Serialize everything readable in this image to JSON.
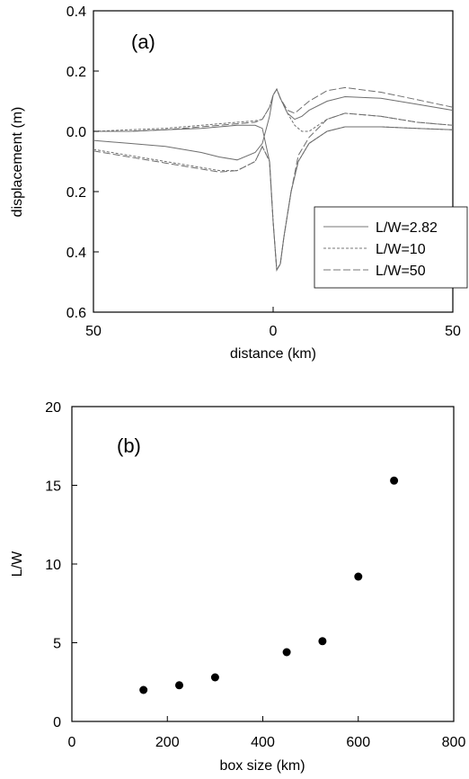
{
  "chart_data": [
    {
      "type": "line",
      "panel_label": "(a)",
      "xlabel": "distance (km)",
      "ylabel": "displacement (m)",
      "xlim": [
        -50,
        50
      ],
      "ylim": [
        -0.6,
        0.4
      ],
      "x_ticks": [
        -50,
        0,
        50
      ],
      "x_tick_labels": [
        "50",
        "0",
        "50"
      ],
      "y_ticks": [
        0.4,
        0.2,
        0.0,
        -0.2,
        -0.4,
        -0.6
      ],
      "y_tick_labels": [
        "0.4",
        "0.2",
        "0.0",
        "0.2",
        "0.4",
        "0.6"
      ],
      "legend_position": "bottom-right",
      "series": [
        {
          "name": "L/W=2.82",
          "style": "solid",
          "curves": [
            {
              "x": [
                -50,
                -40,
                -30,
                -20,
                -15,
                -10,
                -5,
                -3,
                -1,
                0,
                1,
                2,
                4,
                6,
                8,
                10,
                15,
                20,
                30,
                40,
                50
              ],
              "y": [
                -0.03,
                -0.04,
                -0.05,
                -0.07,
                -0.085,
                -0.095,
                -0.07,
                -0.04,
                0.05,
                0.12,
                0.14,
                0.11,
                0.06,
                0.04,
                0.05,
                0.07,
                0.1,
                0.115,
                0.11,
                0.09,
                0.07
              ]
            },
            {
              "x": [
                -50,
                -40,
                -30,
                -20,
                -15,
                -10,
                -5,
                -3,
                -1,
                0,
                1,
                2,
                3,
                5,
                7,
                10,
                15,
                20,
                30,
                40,
                50
              ],
              "y": [
                0.0,
                0.0,
                0.005,
                0.01,
                0.015,
                0.02,
                0.02,
                0.01,
                -0.1,
                -0.3,
                -0.46,
                -0.44,
                -0.35,
                -0.2,
                -0.1,
                -0.04,
                0.0,
                0.015,
                0.015,
                0.01,
                0.005
              ]
            }
          ]
        },
        {
          "name": "L/W=10",
          "style": "short-dash",
          "curves": [
            {
              "x": [
                -50,
                -40,
                -30,
                -20,
                -15,
                -10,
                -5,
                -3,
                -1,
                0,
                1,
                2,
                4,
                6,
                8,
                10,
                15,
                20,
                30,
                40,
                50
              ],
              "y": [
                0.0,
                0.005,
                0.01,
                0.02,
                0.025,
                0.03,
                0.035,
                0.04,
                0.08,
                0.12,
                0.14,
                0.11,
                0.06,
                0.02,
                0.0,
                0.0,
                0.04,
                0.06,
                0.05,
                0.03,
                0.02
              ]
            },
            {
              "x": [
                -50,
                -40,
                -30,
                -20,
                -15,
                -10,
                -5,
                -3,
                -1,
                0,
                1,
                2,
                3,
                5,
                7,
                10,
                15,
                20,
                30,
                40,
                50
              ],
              "y": [
                -0.06,
                -0.08,
                -0.1,
                -0.12,
                -0.13,
                -0.13,
                -0.1,
                -0.05,
                -0.1,
                -0.3,
                -0.46,
                -0.44,
                -0.35,
                -0.2,
                -0.1,
                -0.04,
                0.0,
                0.015,
                0.015,
                0.01,
                0.005
              ]
            }
          ]
        },
        {
          "name": "L/W=50",
          "style": "long-dash",
          "curves": [
            {
              "x": [
                -50,
                -40,
                -30,
                -20,
                -15,
                -10,
                -5,
                -3,
                -1,
                0,
                1,
                2,
                4,
                6,
                8,
                10,
                15,
                20,
                30,
                40,
                50
              ],
              "y": [
                0.0,
                0.0,
                0.005,
                0.015,
                0.02,
                0.025,
                0.03,
                0.04,
                0.08,
                0.12,
                0.14,
                0.11,
                0.07,
                0.06,
                0.08,
                0.1,
                0.135,
                0.145,
                0.13,
                0.105,
                0.08
              ]
            },
            {
              "x": [
                -50,
                -40,
                -30,
                -20,
                -15,
                -10,
                -5,
                -3,
                -1,
                0,
                1,
                2,
                3,
                5,
                7,
                10,
                15,
                20,
                30,
                40,
                50
              ],
              "y": [
                -0.065,
                -0.085,
                -0.105,
                -0.125,
                -0.135,
                -0.13,
                -0.1,
                -0.05,
                -0.1,
                -0.3,
                -0.46,
                -0.44,
                -0.35,
                -0.2,
                -0.08,
                -0.02,
                0.04,
                0.06,
                0.05,
                0.03,
                0.02
              ]
            }
          ]
        }
      ]
    },
    {
      "type": "scatter",
      "panel_label": "(b)",
      "xlabel": "box size (km)",
      "ylabel": "L/W",
      "xlim": [
        0,
        800
      ],
      "ylim": [
        0,
        20
      ],
      "x_ticks": [
        0,
        200,
        400,
        600,
        800
      ],
      "x_tick_labels": [
        "0",
        "200",
        "400",
        "600",
        "800"
      ],
      "y_ticks": [
        0,
        5,
        10,
        15,
        20
      ],
      "y_tick_labels": [
        "0",
        "5",
        "10",
        "15",
        "20"
      ],
      "series": [
        {
          "x": [
            150,
            225,
            300,
            450,
            525,
            600,
            675
          ],
          "y": [
            2.0,
            2.3,
            2.8,
            4.4,
            5.1,
            9.2,
            15.3
          ]
        }
      ]
    }
  ]
}
